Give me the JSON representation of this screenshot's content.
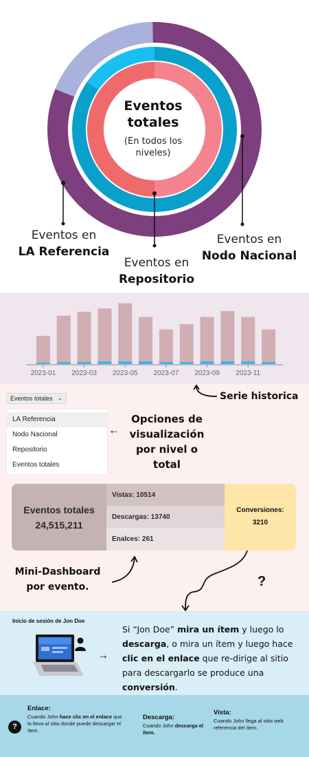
{
  "donut": {
    "center_title": "Eventos totales",
    "center_subtitle": "(En todos los niveles)",
    "label_la_referencia": {
      "line1": "Eventos en",
      "line2": "LA Referencia"
    },
    "label_repositorio": {
      "line1": "Eventos en",
      "line2": "Repositorio"
    },
    "label_nodo_nacional": {
      "line1": "Eventos en",
      "line2": "Nodo Nacional"
    },
    "colors": {
      "outer_main": "#7d3f7d",
      "outer_light": "#a9b2dc",
      "middle_main": "#0aa0cc",
      "middle_light": "#19bff0",
      "inner_light": "#f4838f",
      "inner_dark": "#ef6b6b",
      "center": "#ffffff"
    }
  },
  "chart_data": {
    "type": "bar",
    "categories": [
      "2023-01",
      "2023-02",
      "2023-03",
      "2023-04",
      "2023-05",
      "2023-06",
      "2023-07",
      "2023-08",
      "2023-09",
      "2023-10",
      "2023-11",
      "2023-12"
    ],
    "x_tick_labels": [
      "2023-01",
      "2023-03",
      "2023-05",
      "2023-07",
      "2023-09",
      "2023-11"
    ],
    "series": [
      {
        "values": [
          42,
          73,
          79,
          84,
          92,
          71,
          52,
          60,
          71,
          80,
          71,
          52
        ],
        "color": "#d1aeb3"
      },
      {
        "values": [
          2,
          3,
          3,
          4,
          4,
          4,
          3,
          3,
          4,
          4,
          4,
          3
        ],
        "color": "#3ab6e6"
      }
    ],
    "ylim": [
      0,
      100
    ],
    "grid": false,
    "legend": "none"
  },
  "serie_label": "Serie historica",
  "dropdown": {
    "selected": "Eventos totales",
    "options": [
      "LA Referencia",
      "Nodo Nacional",
      "Repositorio",
      "Eventos totales"
    ],
    "chevron_icon": "chevron-down-icon"
  },
  "options_label": "Opciones de visualización por nivel o total",
  "mini_dashboard": {
    "total_title": "Eventos totales",
    "total_value": "24,515,211",
    "rows": [
      "Vistas: 10514",
      "Descargas: 13740",
      "Enalces: 261"
    ],
    "conv_title": "Conversiones:",
    "conv_value": "3210"
  },
  "minidash_label": "Mini-Dashboard por evento.",
  "question_mark": "?",
  "story": {
    "title": "Inicio de sesión de Jon Doe",
    "t1": "Si “Jon Doe” ",
    "b1": "mira un ítem",
    "t2": " y luego lo ",
    "b2": "descarga",
    "t3": ", o mira un ítem y luego hace ",
    "b3": "clic en el enlace",
    "t4": " que re-dirige al sitio para descargarlo se produce una ",
    "b4": "conversión",
    "t5": "."
  },
  "definitions": {
    "enlace": {
      "title": "Enlace",
      "colon": ":",
      "t1": "Cuando John ",
      "b1": "hace clic en el enlace",
      "t2": " que lo lleva al sitio donde  puede descargar el ítem."
    },
    "descarga": {
      "title": "Descarga",
      "colon": ":",
      "t1": "Cuando John ",
      "b1": "descarga el ítem."
    },
    "vista": {
      "title": "Vista",
      "colon": ":",
      "t1": " Cuando John llega al sitio web referencia del ítem."
    },
    "help_icon": "?"
  }
}
